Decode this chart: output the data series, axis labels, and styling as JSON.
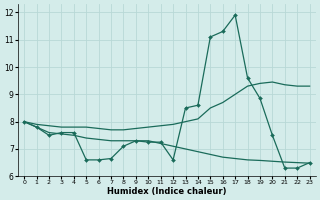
{
  "title": "",
  "xlabel": "Humidex (Indice chaleur)",
  "xlim": [
    -0.5,
    23.5
  ],
  "ylim": [
    6,
    12.3
  ],
  "yticks": [
    6,
    7,
    8,
    9,
    10,
    11,
    12
  ],
  "xticks": [
    0,
    1,
    2,
    3,
    4,
    5,
    6,
    7,
    8,
    9,
    10,
    11,
    12,
    13,
    14,
    15,
    16,
    17,
    18,
    19,
    20,
    21,
    22,
    23
  ],
  "background_color": "#d4ecea",
  "grid_color": "#b8d8d6",
  "line_color": "#1a6b5a",
  "line1_x": [
    0,
    1,
    2,
    3,
    4,
    5,
    6,
    7,
    8,
    9,
    10,
    11,
    12,
    13,
    14,
    15,
    16,
    17,
    18,
    19,
    20,
    21,
    22,
    23
  ],
  "line1_y": [
    8.0,
    7.8,
    7.5,
    7.6,
    7.6,
    6.6,
    6.6,
    6.65,
    7.1,
    7.3,
    7.25,
    7.25,
    6.6,
    8.5,
    8.6,
    11.1,
    11.3,
    11.9,
    9.6,
    8.85,
    7.5,
    6.3,
    6.3,
    6.5
  ],
  "line2_x": [
    0,
    1,
    2,
    3,
    4,
    5,
    6,
    7,
    8,
    9,
    10,
    11,
    12,
    13,
    14,
    15,
    16,
    17,
    18,
    19,
    20,
    21,
    22,
    23
  ],
  "line2_y": [
    8.0,
    7.9,
    7.85,
    7.8,
    7.8,
    7.8,
    7.75,
    7.7,
    7.7,
    7.75,
    7.8,
    7.85,
    7.9,
    8.0,
    8.1,
    8.5,
    8.7,
    9.0,
    9.3,
    9.4,
    9.45,
    9.35,
    9.3,
    9.3
  ],
  "line3_x": [
    0,
    1,
    2,
    3,
    4,
    5,
    6,
    7,
    8,
    9,
    10,
    11,
    12,
    13,
    14,
    15,
    16,
    17,
    18,
    19,
    20,
    21,
    22,
    23
  ],
  "line3_y": [
    8.0,
    7.8,
    7.6,
    7.55,
    7.5,
    7.4,
    7.35,
    7.3,
    7.3,
    7.3,
    7.3,
    7.2,
    7.1,
    7.0,
    6.9,
    6.8,
    6.7,
    6.65,
    6.6,
    6.58,
    6.55,
    6.52,
    6.5,
    6.48
  ]
}
